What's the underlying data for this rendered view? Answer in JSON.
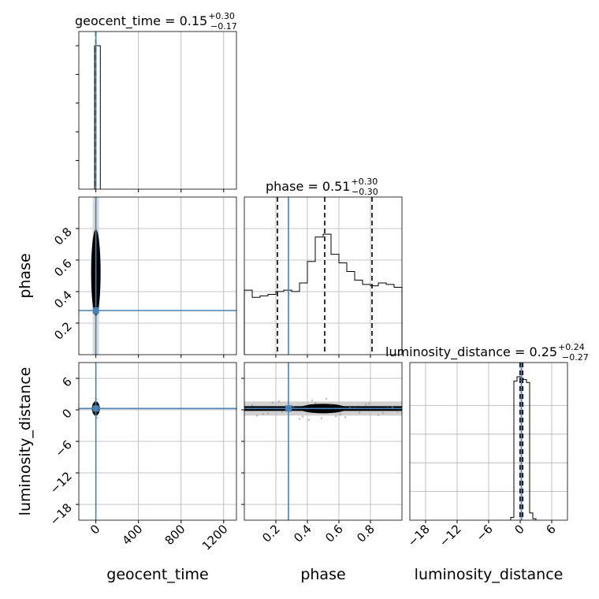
{
  "chart_data": {
    "type": "corner",
    "parameters": [
      "geocent_time",
      "phase",
      "luminosity_distance"
    ],
    "colors": {
      "truth": "#4682b4",
      "samples": "#000000",
      "grid": "#b0b0b0",
      "scatter": "#8c8c8c"
    },
    "truth": {
      "geocent_time": 0,
      "phase": 0.28,
      "luminosity_distance": 0.25
    },
    "quantiles": {
      "geocent_time": [
        -0.02,
        0.15,
        0.45
      ],
      "phase": [
        0.21,
        0.51,
        0.81
      ],
      "luminosity_distance": [
        -0.02,
        0.25,
        0.49
      ]
    },
    "titles": {
      "geocent_time": {
        "label": "geocent_time = 0.15",
        "plus": "+0.30",
        "minus": "−0.17"
      },
      "phase": {
        "label": "phase = 0.51",
        "plus": "+0.30",
        "minus": "−0.30"
      },
      "luminosity_distance": {
        "label": "luminosity_distance = 0.25",
        "plus": "+0.24",
        "minus": "−0.27"
      }
    },
    "axis_labels": {
      "x": [
        "geocent_time",
        "phase",
        "luminosity_distance"
      ],
      "y": [
        "phase",
        "luminosity_distance"
      ]
    },
    "ranges": {
      "geocent_time": [
        -160,
        1320
      ],
      "phase": [
        0.0,
        1.0
      ],
      "luminosity_distance": [
        -21,
        9
      ]
    },
    "ticks": {
      "geocent_time": [
        0,
        400,
        800,
        1200
      ],
      "phase": [
        0.2,
        0.4,
        0.6,
        0.8
      ],
      "luminosity_distance": [
        -18,
        -12,
        -6,
        0,
        6
      ]
    },
    "tick_labels": {
      "geocent_time": [
        "0",
        "400",
        "800",
        "1200"
      ],
      "phase": [
        "0.2",
        "0.4",
        "0.6",
        "0.8"
      ],
      "luminosity_distance": [
        "−18",
        "−12",
        "−6",
        "0",
        "6"
      ]
    },
    "histograms": {
      "geocent_time": {
        "edges": [
          -12,
          42
        ],
        "counts": [
          1.0
        ]
      },
      "phase": {
        "edges": [
          0.0,
          0.05,
          0.1,
          0.15,
          0.2,
          0.25,
          0.3,
          0.35,
          0.4,
          0.45,
          0.5,
          0.55,
          0.6,
          0.65,
          0.7,
          0.75,
          0.8,
          0.85,
          0.9,
          0.95,
          1.0
        ],
        "counts": [
          0.45,
          0.4,
          0.41,
          0.42,
          0.44,
          0.45,
          0.44,
          0.5,
          0.65,
          0.82,
          0.84,
          0.7,
          0.64,
          0.58,
          0.52,
          0.49,
          0.48,
          0.5,
          0.49,
          0.47
        ]
      },
      "luminosity_distance": {
        "edges": [
          -1.8,
          -1.2,
          -0.6,
          0,
          0.6,
          1.2,
          1.8,
          2.4,
          3.0
        ],
        "counts": [
          0.02,
          0.97,
          1.0,
          0.99,
          0.98,
          0.96,
          0.05,
          0.01
        ]
      }
    },
    "scatter": {
      "phase_vs_geocent_time": {
        "x": [
          -8,
          5,
          12,
          -15,
          0,
          18,
          -4,
          9,
          -20,
          3,
          14,
          -10,
          22,
          6,
          -2,
          25,
          -6,
          10,
          1,
          -12,
          16,
          4,
          -18,
          8,
          2,
          -25,
          30,
          -1,
          11,
          7
        ],
        "y": [
          0.2,
          0.35,
          0.55,
          0.62,
          0.48,
          0.3,
          0.72,
          0.44,
          0.58,
          0.66,
          0.25,
          0.52,
          0.38,
          0.6,
          0.42,
          0.5,
          0.34,
          0.7,
          0.46,
          0.28,
          0.56,
          0.4,
          0.64,
          0.32,
          0.54,
          0.61,
          0.47,
          0.37,
          0.57,
          0.49
        ]
      },
      "luminosity_distance_vs_geocent_time": {
        "x": [
          -6,
          4,
          10,
          -12,
          2,
          15,
          -3,
          8,
          -18,
          1,
          12,
          -9,
          20,
          5,
          -1
        ],
        "y": [
          0.4,
          -0.6,
          1.2,
          0.1,
          -1.1,
          0.7,
          1.6,
          -0.3,
          0.5,
          2.1,
          -1.5,
          0.9,
          0.2,
          -0.8,
          1.0
        ]
      },
      "luminosity_distance_vs_phase": {
        "x": [
          0.05,
          0.12,
          0.18,
          0.24,
          0.31,
          0.37,
          0.43,
          0.49,
          0.55,
          0.61,
          0.67,
          0.73,
          0.79,
          0.85,
          0.91,
          0.97,
          0.08,
          0.22,
          0.35,
          0.52,
          0.64,
          0.77,
          0.88,
          0.45,
          0.58,
          0.3,
          0.7,
          0.15,
          0.94,
          0.41
        ],
        "y": [
          0.9,
          -0.8,
          1.4,
          -0.4,
          0.6,
          -1.3,
          1.8,
          -1.6,
          1.1,
          -0.9,
          0.4,
          -0.5,
          1.2,
          -1.0,
          0.7,
          -0.3,
          -1.1,
          1.6,
          -1.7,
          2.1,
          -1.4,
          1.0,
          -0.6,
          1.3,
          -1.2,
          0.8,
          0.3,
          -0.7,
          0.5,
          -1.9
        ]
      }
    }
  }
}
